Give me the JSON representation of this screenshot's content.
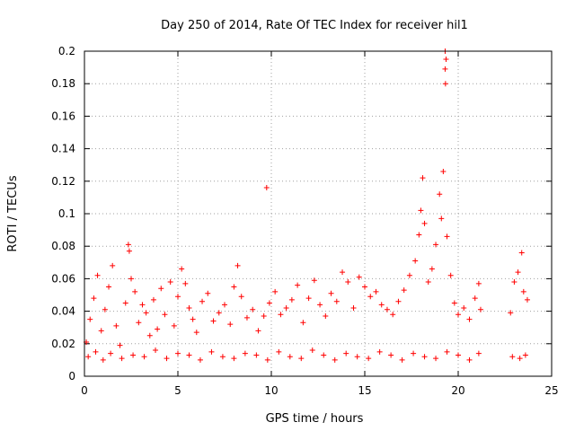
{
  "chart_data": {
    "type": "scatter",
    "title": "Day 250 of 2014, Rate Of TEC Index for receiver hil1",
    "xlabel": "GPS time / hours",
    "ylabel": "ROTI / TECUs",
    "xlim": [
      0,
      25
    ],
    "ylim": [
      0,
      0.2
    ],
    "xticks": [
      0,
      5,
      10,
      15,
      20,
      25
    ],
    "yticks": [
      0,
      0.02,
      0.04,
      0.06,
      0.08,
      0.1,
      0.12,
      0.14,
      0.16,
      0.18,
      0.2
    ],
    "xtick_labels": [
      "0",
      "5",
      "10",
      "15",
      "20",
      "25"
    ],
    "ytick_labels": [
      "0",
      "0.02",
      "0.04",
      "0.06",
      "0.08",
      "0.1",
      "0.12",
      "0.14",
      "0.16",
      "0.18",
      "0.2"
    ],
    "grid": true,
    "marker": "+",
    "color": "#ff0000",
    "series": [
      {
        "points": [
          [
            0.1,
            0.021
          ],
          [
            0.3,
            0.035
          ],
          [
            0.5,
            0.048
          ],
          [
            0.7,
            0.062
          ],
          [
            0.9,
            0.028
          ],
          [
            1.1,
            0.041
          ],
          [
            1.3,
            0.055
          ],
          [
            1.5,
            0.068
          ],
          [
            1.7,
            0.031
          ],
          [
            1.9,
            0.019
          ],
          [
            2.2,
            0.045
          ],
          [
            2.35,
            0.081
          ],
          [
            2.4,
            0.077
          ],
          [
            2.5,
            0.06
          ],
          [
            2.7,
            0.052
          ],
          [
            2.9,
            0.033
          ],
          [
            3.1,
            0.044
          ],
          [
            3.3,
            0.039
          ],
          [
            3.5,
            0.025
          ],
          [
            3.7,
            0.047
          ],
          [
            3.9,
            0.029
          ],
          [
            4.1,
            0.054
          ],
          [
            4.3,
            0.038
          ],
          [
            4.6,
            0.058
          ],
          [
            4.8,
            0.031
          ],
          [
            5.0,
            0.049
          ],
          [
            5.2,
            0.066
          ],
          [
            5.4,
            0.057
          ],
          [
            5.6,
            0.042
          ],
          [
            5.8,
            0.035
          ],
          [
            6.0,
            0.027
          ],
          [
            6.3,
            0.046
          ],
          [
            6.6,
            0.051
          ],
          [
            6.9,
            0.034
          ],
          [
            7.2,
            0.039
          ],
          [
            7.5,
            0.044
          ],
          [
            7.8,
            0.032
          ],
          [
            8.0,
            0.055
          ],
          [
            8.2,
            0.068
          ],
          [
            8.4,
            0.049
          ],
          [
            8.7,
            0.036
          ],
          [
            9.0,
            0.041
          ],
          [
            9.3,
            0.028
          ],
          [
            9.6,
            0.037
          ],
          [
            9.75,
            0.116
          ],
          [
            9.9,
            0.045
          ],
          [
            10.2,
            0.052
          ],
          [
            10.5,
            0.038
          ],
          [
            10.8,
            0.042
          ],
          [
            11.1,
            0.047
          ],
          [
            11.4,
            0.056
          ],
          [
            11.7,
            0.033
          ],
          [
            12.0,
            0.048
          ],
          [
            12.3,
            0.059
          ],
          [
            12.6,
            0.044
          ],
          [
            12.9,
            0.037
          ],
          [
            13.2,
            0.051
          ],
          [
            13.5,
            0.046
          ],
          [
            13.8,
            0.064
          ],
          [
            14.1,
            0.058
          ],
          [
            14.4,
            0.042
          ],
          [
            14.7,
            0.061
          ],
          [
            15.0,
            0.055
          ],
          [
            15.3,
            0.049
          ],
          [
            15.6,
            0.052
          ],
          [
            15.9,
            0.044
          ],
          [
            16.2,
            0.041
          ],
          [
            16.5,
            0.038
          ],
          [
            16.8,
            0.046
          ],
          [
            17.1,
            0.053
          ],
          [
            17.4,
            0.062
          ],
          [
            17.7,
            0.071
          ],
          [
            17.9,
            0.087
          ],
          [
            18.0,
            0.102
          ],
          [
            18.1,
            0.122
          ],
          [
            18.2,
            0.094
          ],
          [
            18.4,
            0.058
          ],
          [
            18.6,
            0.066
          ],
          [
            18.8,
            0.081
          ],
          [
            19.0,
            0.112
          ],
          [
            19.1,
            0.097
          ],
          [
            19.2,
            0.126
          ],
          [
            19.3,
            0.2
          ],
          [
            19.35,
            0.195
          ],
          [
            19.3,
            0.189
          ],
          [
            19.32,
            0.18
          ],
          [
            19.4,
            0.086
          ],
          [
            19.6,
            0.062
          ],
          [
            19.8,
            0.045
          ],
          [
            20.0,
            0.038
          ],
          [
            20.3,
            0.042
          ],
          [
            20.6,
            0.035
          ],
          [
            20.9,
            0.048
          ],
          [
            21.1,
            0.057
          ],
          [
            21.2,
            0.041
          ],
          [
            22.8,
            0.039
          ],
          [
            23.0,
            0.058
          ],
          [
            23.2,
            0.064
          ],
          [
            23.4,
            0.076
          ],
          [
            23.5,
            0.052
          ],
          [
            23.7,
            0.047
          ],
          [
            0.2,
            0.012
          ],
          [
            0.6,
            0.015
          ],
          [
            1.0,
            0.01
          ],
          [
            1.4,
            0.014
          ],
          [
            2.0,
            0.011
          ],
          [
            2.6,
            0.013
          ],
          [
            3.2,
            0.012
          ],
          [
            3.8,
            0.016
          ],
          [
            4.4,
            0.011
          ],
          [
            5.0,
            0.014
          ],
          [
            5.6,
            0.013
          ],
          [
            6.2,
            0.01
          ],
          [
            6.8,
            0.015
          ],
          [
            7.4,
            0.012
          ],
          [
            8.0,
            0.011
          ],
          [
            8.6,
            0.014
          ],
          [
            9.2,
            0.013
          ],
          [
            9.8,
            0.01
          ],
          [
            10.4,
            0.015
          ],
          [
            11.0,
            0.012
          ],
          [
            11.6,
            0.011
          ],
          [
            12.2,
            0.016
          ],
          [
            12.8,
            0.013
          ],
          [
            13.4,
            0.01
          ],
          [
            14.0,
            0.014
          ],
          [
            14.6,
            0.012
          ],
          [
            15.2,
            0.011
          ],
          [
            15.8,
            0.015
          ],
          [
            16.4,
            0.013
          ],
          [
            17.0,
            0.01
          ],
          [
            17.6,
            0.014
          ],
          [
            18.2,
            0.012
          ],
          [
            18.8,
            0.011
          ],
          [
            19.4,
            0.015
          ],
          [
            20.0,
            0.013
          ],
          [
            20.6,
            0.01
          ],
          [
            21.1,
            0.014
          ],
          [
            22.9,
            0.012
          ],
          [
            23.3,
            0.011
          ],
          [
            23.6,
            0.013
          ]
        ]
      }
    ]
  }
}
